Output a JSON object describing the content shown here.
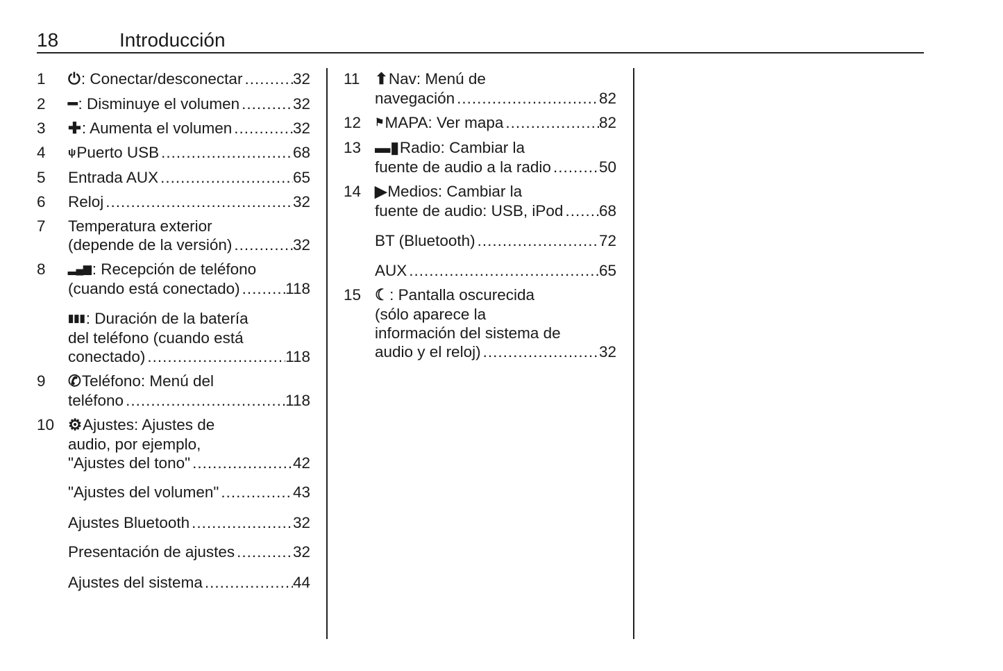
{
  "header": {
    "page_number": "18",
    "title": "Introducción"
  },
  "columns": [
    {
      "items": [
        {
          "num": "1",
          "icon": "power-icon",
          "lines": [
            ": Conectar/desconectar"
          ],
          "page": "32"
        },
        {
          "num": "2",
          "icon": "minus-icon",
          "lines": [
            ": Disminuye el volumen"
          ],
          "page": "32"
        },
        {
          "num": "3",
          "icon": "plus-icon",
          "lines": [
            ": Aumenta el volumen"
          ],
          "page": "32"
        },
        {
          "num": "4",
          "icon": "usb-icon",
          "lines": [
            " Puerto USB"
          ],
          "page": "68"
        },
        {
          "num": "5",
          "icon": "",
          "lines": [
            "Entrada AUX"
          ],
          "page": "65"
        },
        {
          "num": "6",
          "icon": "",
          "lines": [
            "Reloj"
          ],
          "page": "32"
        },
        {
          "num": "7",
          "icon": "",
          "lines": [
            "Temperatura exterior",
            "(depende de la versión)"
          ],
          "page": "32"
        },
        {
          "num": "8",
          "icon": "signal-icon",
          "lines": [
            ": Recepción de teléfono",
            "(cuando está conectado)"
          ],
          "page": "118"
        },
        {
          "num": "",
          "icon": "battery-icon",
          "lines": [
            ": Duración de la batería",
            "del teléfono (cuando está",
            "conectado)"
          ],
          "page": "118"
        },
        {
          "num": "9",
          "icon": "phone-icon",
          "lines": [
            "Teléfono: Menú del",
            "teléfono"
          ],
          "page": "118"
        },
        {
          "num": "10",
          "icon": "gear-icon",
          "lines": [
            "Ajustes: Ajustes de",
            "audio, por ejemplo,",
            "\"Ajustes del tono\""
          ],
          "page": "42"
        },
        {
          "num": "",
          "icon": "",
          "lines": [
            "\"Ajustes del volumen\""
          ],
          "page": "43"
        },
        {
          "num": "",
          "icon": "",
          "lines": [
            "Ajustes Bluetooth"
          ],
          "page": "32"
        },
        {
          "num": "",
          "icon": "",
          "lines": [
            "Presentación de ajustes"
          ],
          "page": "32"
        },
        {
          "num": "",
          "icon": "",
          "lines": [
            "Ajustes del sistema"
          ],
          "page": "44"
        }
      ]
    },
    {
      "items": [
        {
          "num": "11",
          "icon": "nav-arrow-icon",
          "lines": [
            "Nav: Menú de",
            "navegación"
          ],
          "page": "82"
        },
        {
          "num": "12",
          "icon": "flag-icon",
          "lines": [
            "MAPA: Ver mapa"
          ],
          "page": "82"
        },
        {
          "num": "13",
          "icon": "radio-icon",
          "lines": [
            "Radio: Cambiar la",
            "fuente de audio a la radio"
          ],
          "page": "50"
        },
        {
          "num": "14",
          "icon": "media-play-icon",
          "lines": [
            "Medios: Cambiar la",
            "fuente de audio: USB, iPod"
          ],
          "page": "68"
        },
        {
          "num": "",
          "icon": "",
          "lines": [
            "BT (Bluetooth)"
          ],
          "page": "72"
        },
        {
          "num": "",
          "icon": "",
          "lines": [
            "AUX"
          ],
          "page": "65"
        },
        {
          "num": "15",
          "icon": "moon-icon",
          "lines": [
            ": Pantalla oscurecida",
            "(sólo aparece la",
            "información del sistema de",
            "audio y el reloj)"
          ],
          "page": "32"
        }
      ]
    }
  ]
}
